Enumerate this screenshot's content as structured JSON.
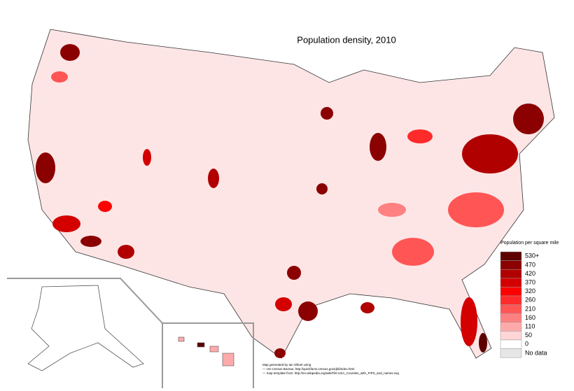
{
  "title": "Population density, 2010",
  "legend": {
    "title": "Population per square mile",
    "items": [
      {
        "label": "530+",
        "color": "#5c0000"
      },
      {
        "label": "470",
        "color": "#8b0000"
      },
      {
        "label": "420",
        "color": "#b00000"
      },
      {
        "label": "370",
        "color": "#d40000"
      },
      {
        "label": "320",
        "color": "#ff0000"
      },
      {
        "label": "260",
        "color": "#ff2b2b"
      },
      {
        "label": "210",
        "color": "#ff5555"
      },
      {
        "label": "160",
        "color": "#ff8080"
      },
      {
        "label": "110",
        "color": "#ffaaaa"
      },
      {
        "label": "50",
        "color": "#ffd5d5"
      },
      {
        "label": "0",
        "color": "#ffffff"
      },
      {
        "label": "No data",
        "color": "#e6e6e6"
      }
    ]
  },
  "credits": [
    "Map generated by Ian Ollivel using",
    "— US Census Bureau: http://quickfacts.census.gov/qfd/index.html",
    "— map template from: http://en.wikipedia.org/wiki/File:USA_Counties_with_FIPS_and_names.svg"
  ]
}
